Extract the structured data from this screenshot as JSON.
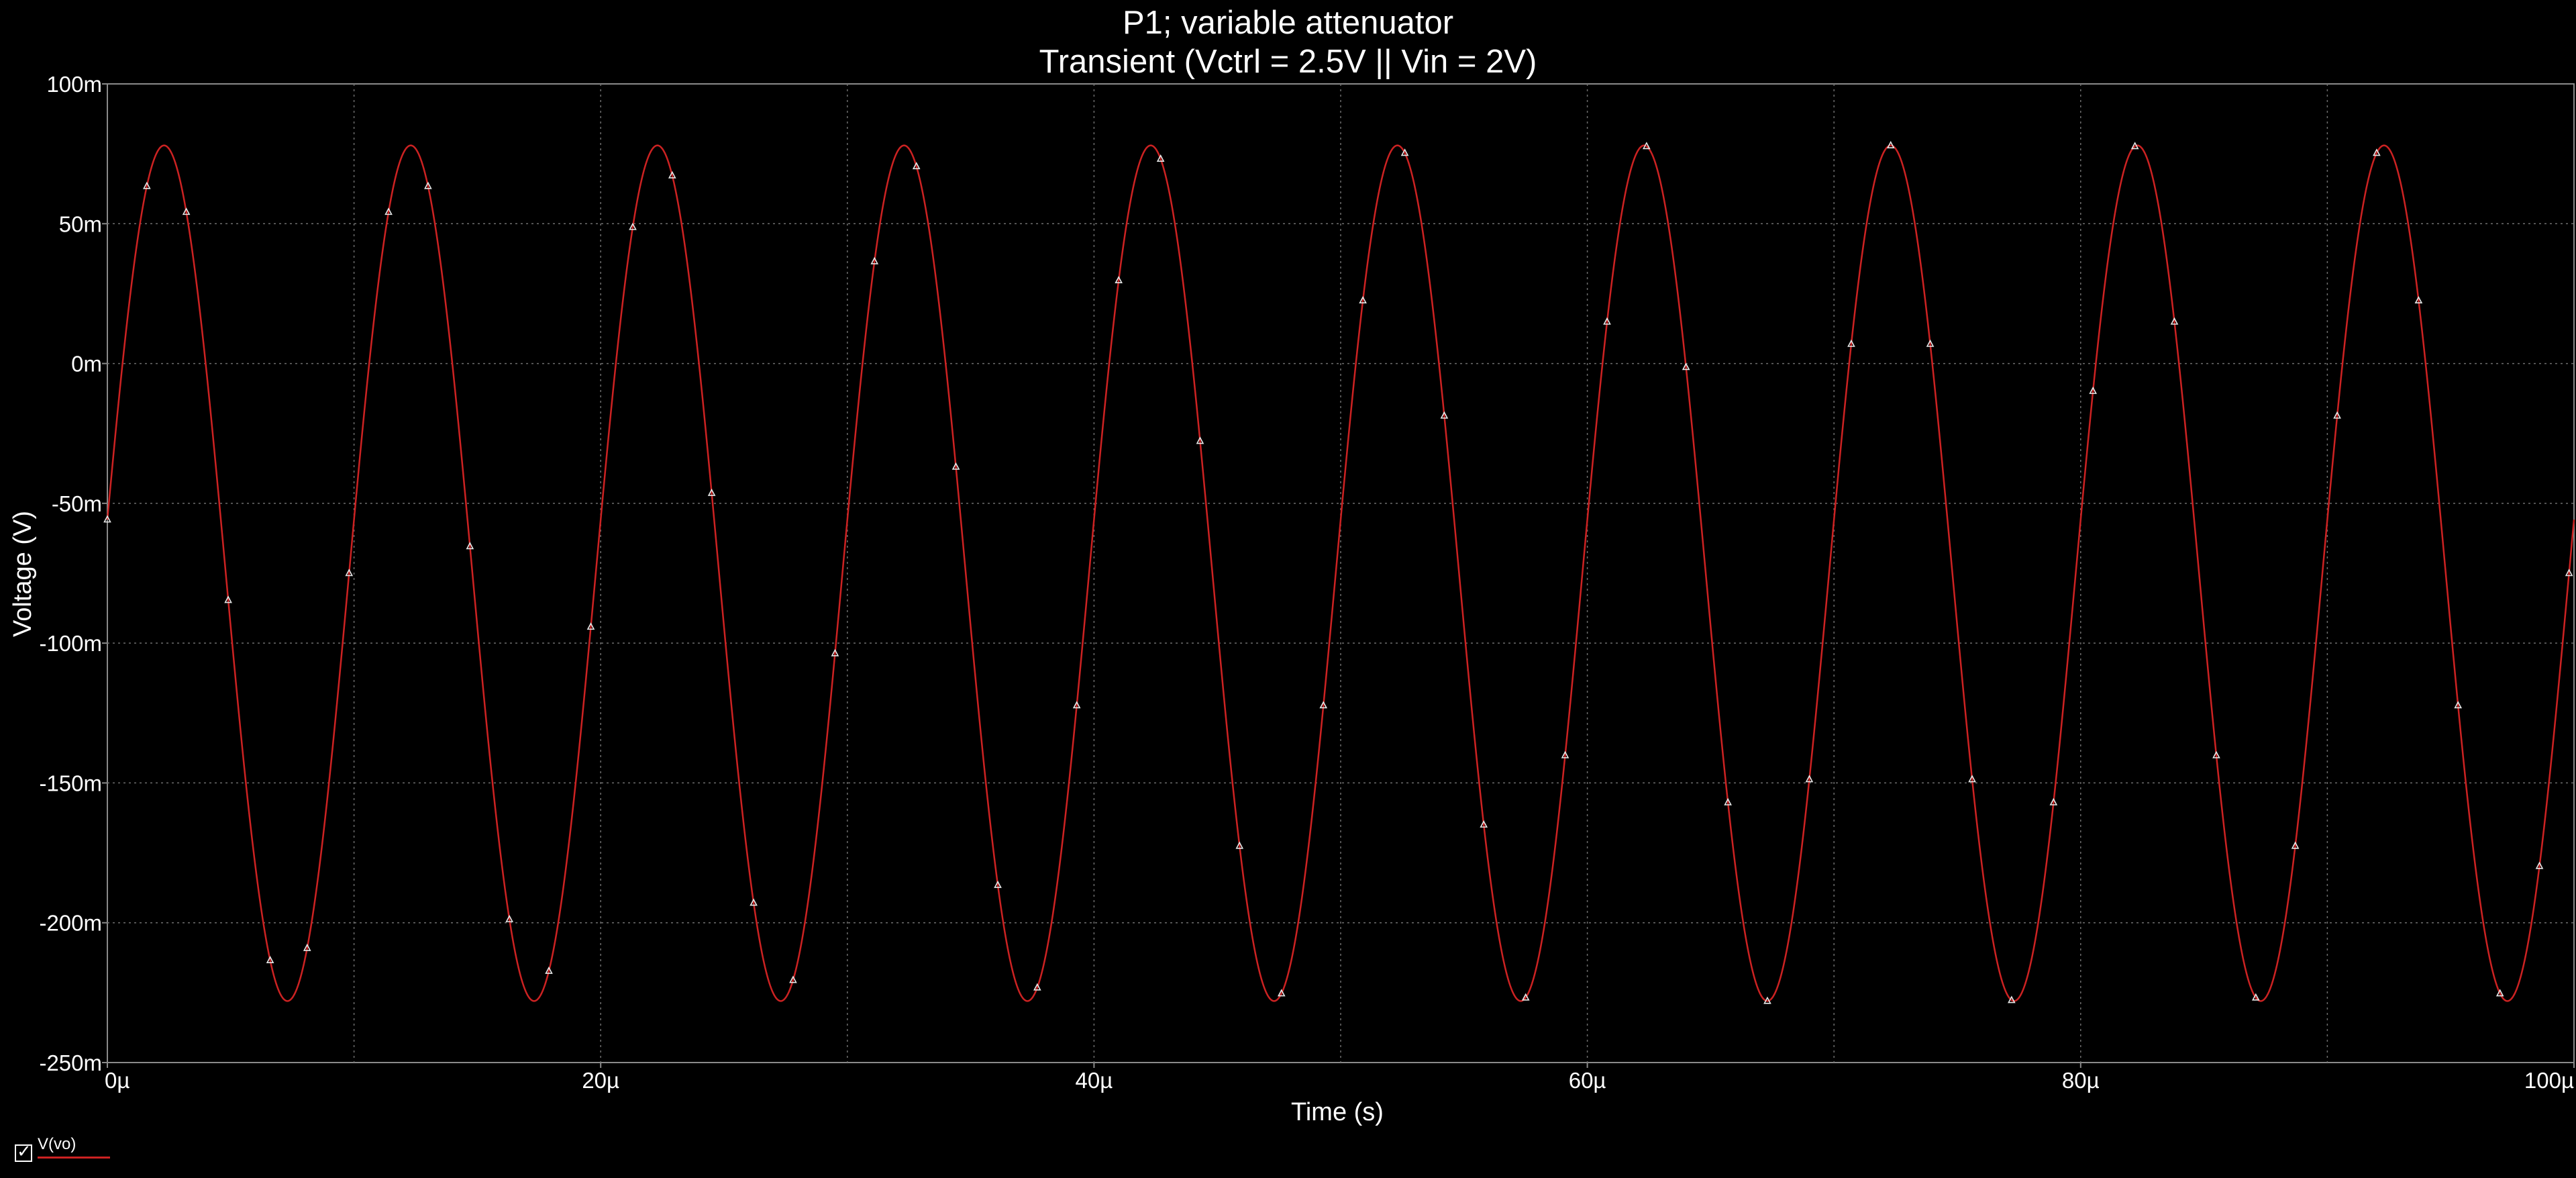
{
  "window": {
    "title_line1": "P1; variable attenuator",
    "title_line2": "Transient (Vctrl = 2.5V || Vin = 2V)"
  },
  "legend": {
    "label": "V(vo)",
    "checked": true
  },
  "chart_data": {
    "type": "line",
    "title": "P1; variable attenuator",
    "subtitle": "Transient (Vctrl = 2.5V || Vin = 2V)",
    "xlabel": "Time (s)",
    "ylabel": "Voltage (V)",
    "xlim": [
      0,
      100
    ],
    "x_unit": "µs",
    "ylim": [
      -250,
      100
    ],
    "y_unit": "mV",
    "x_ticks": [
      0,
      20,
      40,
      60,
      80,
      100
    ],
    "x_tick_labels": [
      "0µ",
      "20µ",
      "40µ",
      "60µ",
      "80µ",
      "100µ"
    ],
    "y_ticks": [
      100,
      50,
      0,
      -50,
      -100,
      -150,
      -200,
      -250
    ],
    "y_tick_labels": [
      "100m",
      "50m",
      "0m",
      "-50m",
      "-100m",
      "-150m",
      "-200m",
      "-250m"
    ],
    "grid": true,
    "legend_position": "bottom-left",
    "series": [
      {
        "name": "V(vo)",
        "color": "#cc2222",
        "marker_color": "#e8e8e8",
        "waveform": {
          "shape": "sine",
          "period": 10,
          "max": 78,
          "min": -228,
          "peak_times": [
            2.3,
            12.3,
            22.3,
            32.3,
            42.3,
            52.3,
            62.3,
            72.3,
            82.3,
            92.3
          ],
          "trough_times": [
            7.3,
            17.3,
            27.3,
            37.3,
            47.3,
            57.3,
            67.3,
            77.3,
            87.3,
            97.3
          ]
        },
        "marker_times": [
          0,
          1.6,
          3.2,
          4.9,
          6.6,
          8.1,
          9.8,
          11.4,
          13.0,
          14.7,
          16.3,
          17.9,
          19.6,
          21.3,
          22.9,
          24.5,
          26.2,
          27.8,
          29.5,
          31.1,
          32.8,
          34.4,
          36.1,
          37.7,
          39.3,
          41.0,
          42.7,
          44.3,
          45.9,
          47.6,
          49.3,
          50.9,
          52.6,
          54.2,
          55.8,
          57.5,
          59.1,
          60.8,
          62.4,
          64.0,
          65.7,
          67.3,
          69.0,
          70.7,
          72.3,
          73.9,
          75.6,
          77.2,
          78.9,
          80.5,
          82.2,
          83.8,
          85.5,
          87.1,
          88.7,
          90.4,
          92.0,
          93.7,
          95.3,
          97.0,
          98.6,
          99.8
        ]
      }
    ]
  }
}
